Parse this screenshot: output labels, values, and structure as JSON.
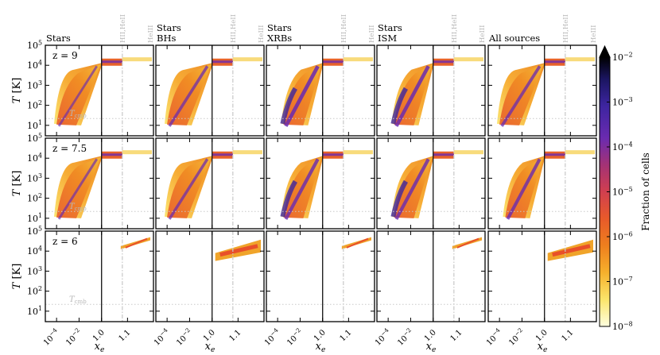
{
  "chart_data": {
    "type": "heatmap",
    "description_layout": "3 rows x 5 columns of phase diagrams (temperature vs electron fraction) with a shared colorbar",
    "columns": [
      {
        "title_lines": [
          "Stars"
        ]
      },
      {
        "title_lines": [
          "Stars",
          "BHs"
        ]
      },
      {
        "title_lines": [
          "Stars",
          "XRBs"
        ]
      },
      {
        "title_lines": [
          "Stars",
          "ISM"
        ]
      },
      {
        "title_lines": [
          "All sources"
        ]
      }
    ],
    "rows": [
      {
        "redshift_label": "z = 9"
      },
      {
        "redshift_label": "z = 7.5"
      },
      {
        "redshift_label": "z = 6"
      }
    ],
    "reference_labels": {
      "top_marker": "HII,HeII",
      "top_marker_right": "HeIII",
      "tcmb": "T_cmb"
    },
    "x_axis": {
      "label": "x_e",
      "tick_labels": [
        "10^-4",
        "10^-2",
        "1.0",
        "1.1"
      ],
      "segments": [
        {
          "scale": "log",
          "range": [
            1e-05,
            1.0
          ]
        },
        {
          "scale": "linear",
          "range": [
            1.0,
            1.2
          ]
        }
      ],
      "marker_lines": [
        {
          "x": 1.0,
          "style": "solid"
        },
        {
          "x": 1.08,
          "style": "dash-dot"
        }
      ]
    },
    "y_axis": {
      "label": "T [K]",
      "scale": "log",
      "range": [
        3,
        100000
      ],
      "tick_labels": [
        "10^1",
        "10^2",
        "10^3",
        "10^4",
        "10^5"
      ]
    },
    "colorbar": {
      "label": "Fraction of cells",
      "scale": "log",
      "range": [
        1e-08,
        0.01
      ],
      "tick_labels": [
        "10^-2",
        "10^-3",
        "10^-4",
        "10^-5",
        "10^-6",
        "10^-7",
        "10^-8"
      ],
      "colors": [
        "#ffffe0",
        "#fbe56a",
        "#f6b02c",
        "#ee7f1e",
        "#e85a2a",
        "#d13f4f",
        "#a43275",
        "#6a2bb0",
        "#3d25a0",
        "#1a1560",
        "#000000"
      ]
    }
  }
}
